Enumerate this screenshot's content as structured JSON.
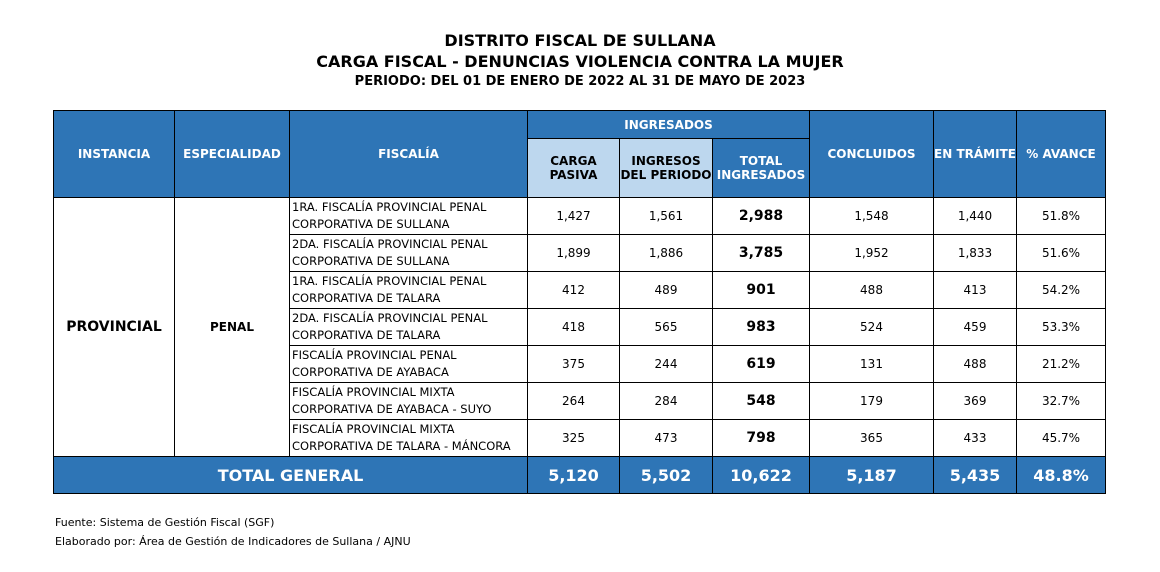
{
  "title": {
    "line1": "DISTRITO FISCAL DE SULLANA",
    "line2": "CARGA FISCAL - DENUNCIAS VIOLENCIA CONTRA LA MUJER",
    "line3": "PERIODO: DEL 01 DE ENERO DE 2022 AL 31 DE MAYO DE 2023"
  },
  "headers": {
    "instancia": "INSTANCIA",
    "especialidad": "ESPECIALIDAD",
    "fiscalia": "FISCALÍA",
    "ingresados": "INGRESADOS",
    "carga_pasiva": "CARGA PASIVA",
    "ingresos_periodo": "INGRESOS DEL PERIODO",
    "total_ingresados": "TOTAL INGRESADOS",
    "concluidos": "CONCLUIDOS",
    "en_tramite": "EN TRÁMITE",
    "avance": "% AVANCE"
  },
  "instancia": "PROVINCIAL",
  "especialidad": "PENAL",
  "rows": [
    {
      "fiscalia_1": "1RA. FISCALÍA PROVINCIAL PENAL",
      "fiscalia_2": "CORPORATIVA DE SULLANA",
      "carga_pasiva": "1,427",
      "ingresos": "1,561",
      "total": "2,988",
      "concluidos": "1,548",
      "tramite": "1,440",
      "avance": "51.8%"
    },
    {
      "fiscalia_1": "2DA. FISCALÍA PROVINCIAL PENAL",
      "fiscalia_2": "CORPORATIVA DE SULLANA",
      "carga_pasiva": "1,899",
      "ingresos": "1,886",
      "total": "3,785",
      "concluidos": "1,952",
      "tramite": "1,833",
      "avance": "51.6%"
    },
    {
      "fiscalia_1": "1RA. FISCALÍA PROVINCIAL PENAL",
      "fiscalia_2": "CORPORATIVA DE TALARA",
      "carga_pasiva": "412",
      "ingresos": "489",
      "total": "901",
      "concluidos": "488",
      "tramite": "413",
      "avance": "54.2%"
    },
    {
      "fiscalia_1": "2DA. FISCALÍA PROVINCIAL PENAL",
      "fiscalia_2": "CORPORATIVA DE TALARA",
      "carga_pasiva": "418",
      "ingresos": "565",
      "total": "983",
      "concluidos": "524",
      "tramite": "459",
      "avance": "53.3%"
    },
    {
      "fiscalia_1": "FISCALÍA PROVINCIAL PENAL",
      "fiscalia_2": "CORPORATIVA DE AYABACA",
      "carga_pasiva": "375",
      "ingresos": "244",
      "total": "619",
      "concluidos": "131",
      "tramite": "488",
      "avance": "21.2%"
    },
    {
      "fiscalia_1": "FISCALÍA PROVINCIAL MIXTA",
      "fiscalia_2": "CORPORATIVA DE AYABACA - SUYO",
      "carga_pasiva": "264",
      "ingresos": "284",
      "total": "548",
      "concluidos": "179",
      "tramite": "369",
      "avance": "32.7%"
    },
    {
      "fiscalia_1": "FISCALÍA PROVINCIAL MIXTA",
      "fiscalia_2": "CORPORATIVA DE TALARA - MÁNCORA",
      "carga_pasiva": "325",
      "ingresos": "473",
      "total": "798",
      "concluidos": "365",
      "tramite": "433",
      "avance": "45.7%"
    }
  ],
  "total": {
    "label": "TOTAL GENERAL",
    "carga_pasiva": "5,120",
    "ingresos": "5,502",
    "total": "10,622",
    "concluidos": "5,187",
    "tramite": "5,435",
    "avance": "48.8%"
  },
  "footer": {
    "fuente": "Fuente: Sistema de Gestión Fiscal (SGF)",
    "elaborado": "Elaborado por: Área de Gestión de Indicadores de Sullana / AJNU"
  },
  "colors": {
    "header_blue": "#2E75B6",
    "subheader_light": "#BDD7EE"
  }
}
